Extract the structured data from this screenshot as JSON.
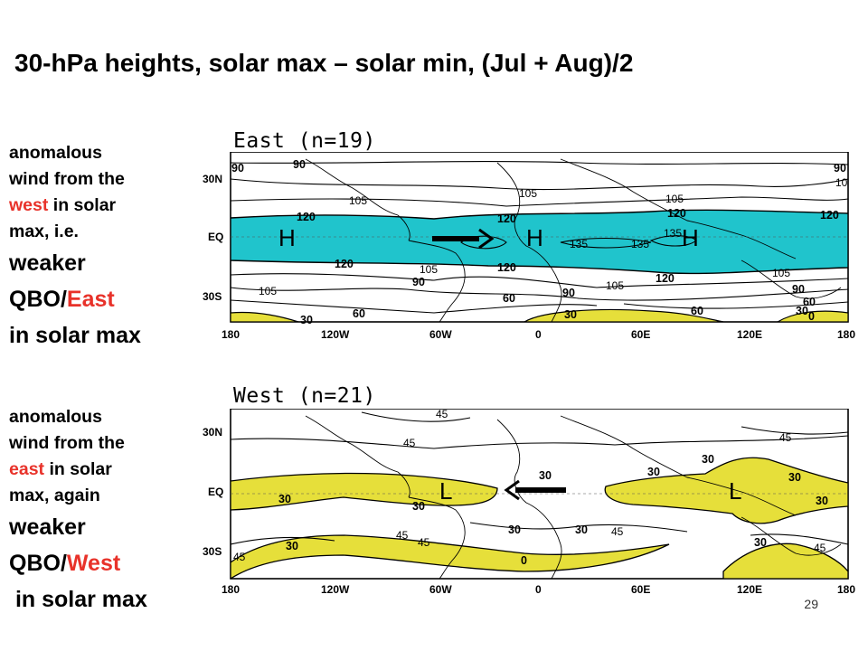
{
  "slide": {
    "title": "30-hPa heights, solar max – solar min, (Jul + Aug)/2",
    "page_number": "29"
  },
  "side_text_top": {
    "line1": "anomalous",
    "line2": "wind from the",
    "line3_red": "west",
    "line3_rest": " in solar",
    "line4": "max, i.e.",
    "line5": "weaker",
    "line6_black": "QBO/",
    "line6_red": "East",
    "line7": "in solar max"
  },
  "side_text_bottom": {
    "line1": "anomalous",
    "line2": "wind from the",
    "line3_red": "east",
    "line3_rest": " in solar",
    "line4": "max, again",
    "line5": "weaker",
    "line6_black": "QBO/",
    "line6_red": "West",
    "line7": " in solar max"
  },
  "maps": {
    "lat_labels": [
      "30N",
      "EQ",
      "30S"
    ],
    "lon_labels": [
      "180",
      "120W",
      "60W",
      "0",
      "60E",
      "120E",
      "180"
    ],
    "top": {
      "title": "East (n=19)",
      "fill_color": "#20c4cc",
      "low_fill_color": "#e6df3a",
      "contour_labels": {
        "c90a": "90",
        "c90b": "90",
        "c90c": "90",
        "c10": "10",
        "c105a": "105",
        "c105b": "105",
        "c105c": "105",
        "c120a": "120",
        "c120b": "120",
        "c120c": "120",
        "c120d": "120",
        "c120e": "120",
        "c120f": "120",
        "c120g": "120",
        "c135a": "135",
        "c135b": "135",
        "c135c": "135",
        "c105d": "105",
        "c105e": "105",
        "c105f": "105",
        "c105g": "105",
        "c90d": "90",
        "c90e": "90",
        "c90f": "90",
        "c60a": "60",
        "c60b": "60",
        "c60c": "60",
        "c60d": "60",
        "c30a": "30",
        "c30b": "30",
        "c30c": "30",
        "c0": "0"
      },
      "markers": [
        "H",
        "H",
        "H"
      ]
    },
    "bottom": {
      "title": "West (n=21)",
      "fill_color": "#e6df3a",
      "contour_labels": {
        "c45a": "45",
        "c45b": "45",
        "c45c": "45",
        "c30a": "30",
        "c30b": "30",
        "c30c": "30",
        "c30d": "30",
        "c30e": "30",
        "c30f": "30",
        "c30g": "30",
        "c30h": "30",
        "c30i": "30",
        "c30j": "30",
        "c30k": "30",
        "c45d": "45",
        "c45e": "45",
        "c45f": "45",
        "c45g": "45",
        "c45h": "45",
        "c0": "0"
      },
      "markers": [
        "L",
        "L"
      ]
    }
  }
}
